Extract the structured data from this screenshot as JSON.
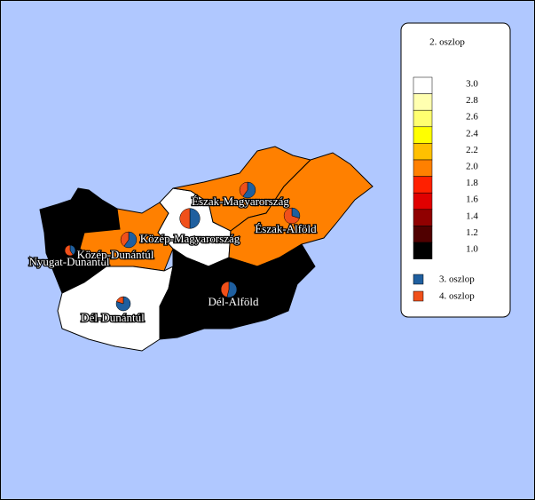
{
  "legend": {
    "title": "2. oszlop",
    "scale": [
      {
        "value": 3,
        "label": "3.0",
        "color": "#ffffff"
      },
      {
        "value": 2.8,
        "label": "2.8",
        "color": "#ffffb0"
      },
      {
        "value": 2.6,
        "label": "2.6",
        "color": "#ffff70"
      },
      {
        "value": 2.4,
        "label": "2.4",
        "color": "#ffff00"
      },
      {
        "value": 2.2,
        "label": "2.2",
        "color": "#ffc000"
      },
      {
        "value": 2,
        "label": "2.0",
        "color": "#ff8000"
      },
      {
        "value": 1.8,
        "label": "1.8",
        "color": "#ff2000"
      },
      {
        "value": 1.6,
        "label": "1.6",
        "color": "#e00000"
      },
      {
        "value": 1.4,
        "label": "1.4",
        "color": "#900000"
      },
      {
        "value": 1.2,
        "label": "1.2",
        "color": "#500000"
      },
      {
        "value": 1,
        "label": "1.0",
        "color": "#000000"
      }
    ],
    "series": [
      {
        "name": "3. oszlop",
        "color": "#1f5f9f"
      },
      {
        "name": "4. oszlop",
        "color": "#f0501a"
      }
    ]
  },
  "regions": [
    {
      "name": "Nyugat-Dunántúl",
      "value": 1,
      "pie": [
        0.9,
        1.3
      ]
    },
    {
      "name": "Közép-Dunántúl",
      "value": 2,
      "pie": [
        3,
        2
      ]
    },
    {
      "name": "Dél-Dunántúl",
      "value": 3,
      "pie": [
        3.2,
        0.8
      ]
    },
    {
      "name": "Közép-Magyarország",
      "value": 3,
      "pie": [
        4,
        4
      ]
    },
    {
      "name": "Észak-Magyarország",
      "value": 2,
      "pie": [
        3,
        2
      ]
    },
    {
      "name": "Észak-Alföld",
      "value": 2,
      "pie": [
        1.5,
        3.5
      ]
    },
    {
      "name": "Dél-Alföld",
      "value": 1,
      "pie": [
        2.7,
        2.3
      ]
    }
  ]
}
